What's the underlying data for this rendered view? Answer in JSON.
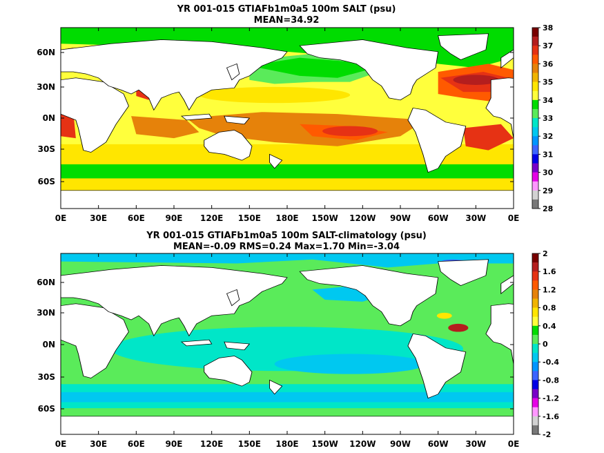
{
  "chart_data": [
    {
      "type": "heatmap",
      "title": "YR 001-015 GTIAFb1m0a5 100m SALT (psu)",
      "subtitle": "MEAN=34.92",
      "x_ticks": [
        "0E",
        "30E",
        "60E",
        "90E",
        "120E",
        "150E",
        "180E",
        "150W",
        "120W",
        "90W",
        "60W",
        "30W",
        "0E"
      ],
      "y_ticks": [
        "60N",
        "30N",
        "0N",
        "30S",
        "60S"
      ],
      "colorbar": {
        "labels": [
          "38",
          "37",
          "36",
          "35",
          "34",
          "33",
          "32",
          "31",
          "30",
          "29",
          "28"
        ],
        "colors_top_to_bottom": [
          "#780000",
          "#b41e1e",
          "#e63214",
          "#ff5a00",
          "#e6820a",
          "#f0b400",
          "#ffe600",
          "#ffff3c",
          "#00dc00",
          "#5aeb5a",
          "#00e6c8",
          "#00c8f0",
          "#0096ff",
          "#3c64ff",
          "#0000e6",
          "#7800c8",
          "#e600e6",
          "#ff96ff",
          "#d2d2d2",
          "#787878"
        ]
      },
      "mean": 34.92
    },
    {
      "type": "heatmap",
      "title": "YR 001-015 GTIAFb1m0a5 100m SALT-climatology (psu)",
      "subtitle": "MEAN=-0.09   RMS=0.24   Max=1.70   Min=-3.04",
      "x_ticks": [
        "0E",
        "30E",
        "60E",
        "90E",
        "120E",
        "150E",
        "180E",
        "150W",
        "120W",
        "90W",
        "60W",
        "30W",
        "0E"
      ],
      "y_ticks": [
        "60N",
        "30N",
        "0N",
        "30S",
        "60S"
      ],
      "colorbar": {
        "labels": [
          "2",
          "1.6",
          "1.2",
          "0.8",
          "0.4",
          "0",
          "-0.4",
          "-0.8",
          "-1.2",
          "-1.6",
          "-2"
        ],
        "colors_top_to_bottom": [
          "#780000",
          "#b41e1e",
          "#e63214",
          "#ff5a00",
          "#e6820a",
          "#f0b400",
          "#ffe600",
          "#ffff3c",
          "#00dc00",
          "#5aeb5a",
          "#00e6c8",
          "#00c8f0",
          "#0096ff",
          "#3c64ff",
          "#0000e6",
          "#7800c8",
          "#e600e6",
          "#ff96ff",
          "#d2d2d2",
          "#787878"
        ]
      },
      "mean": -0.09,
      "rms": 0.24,
      "max": 1.7,
      "min": -3.04
    }
  ]
}
